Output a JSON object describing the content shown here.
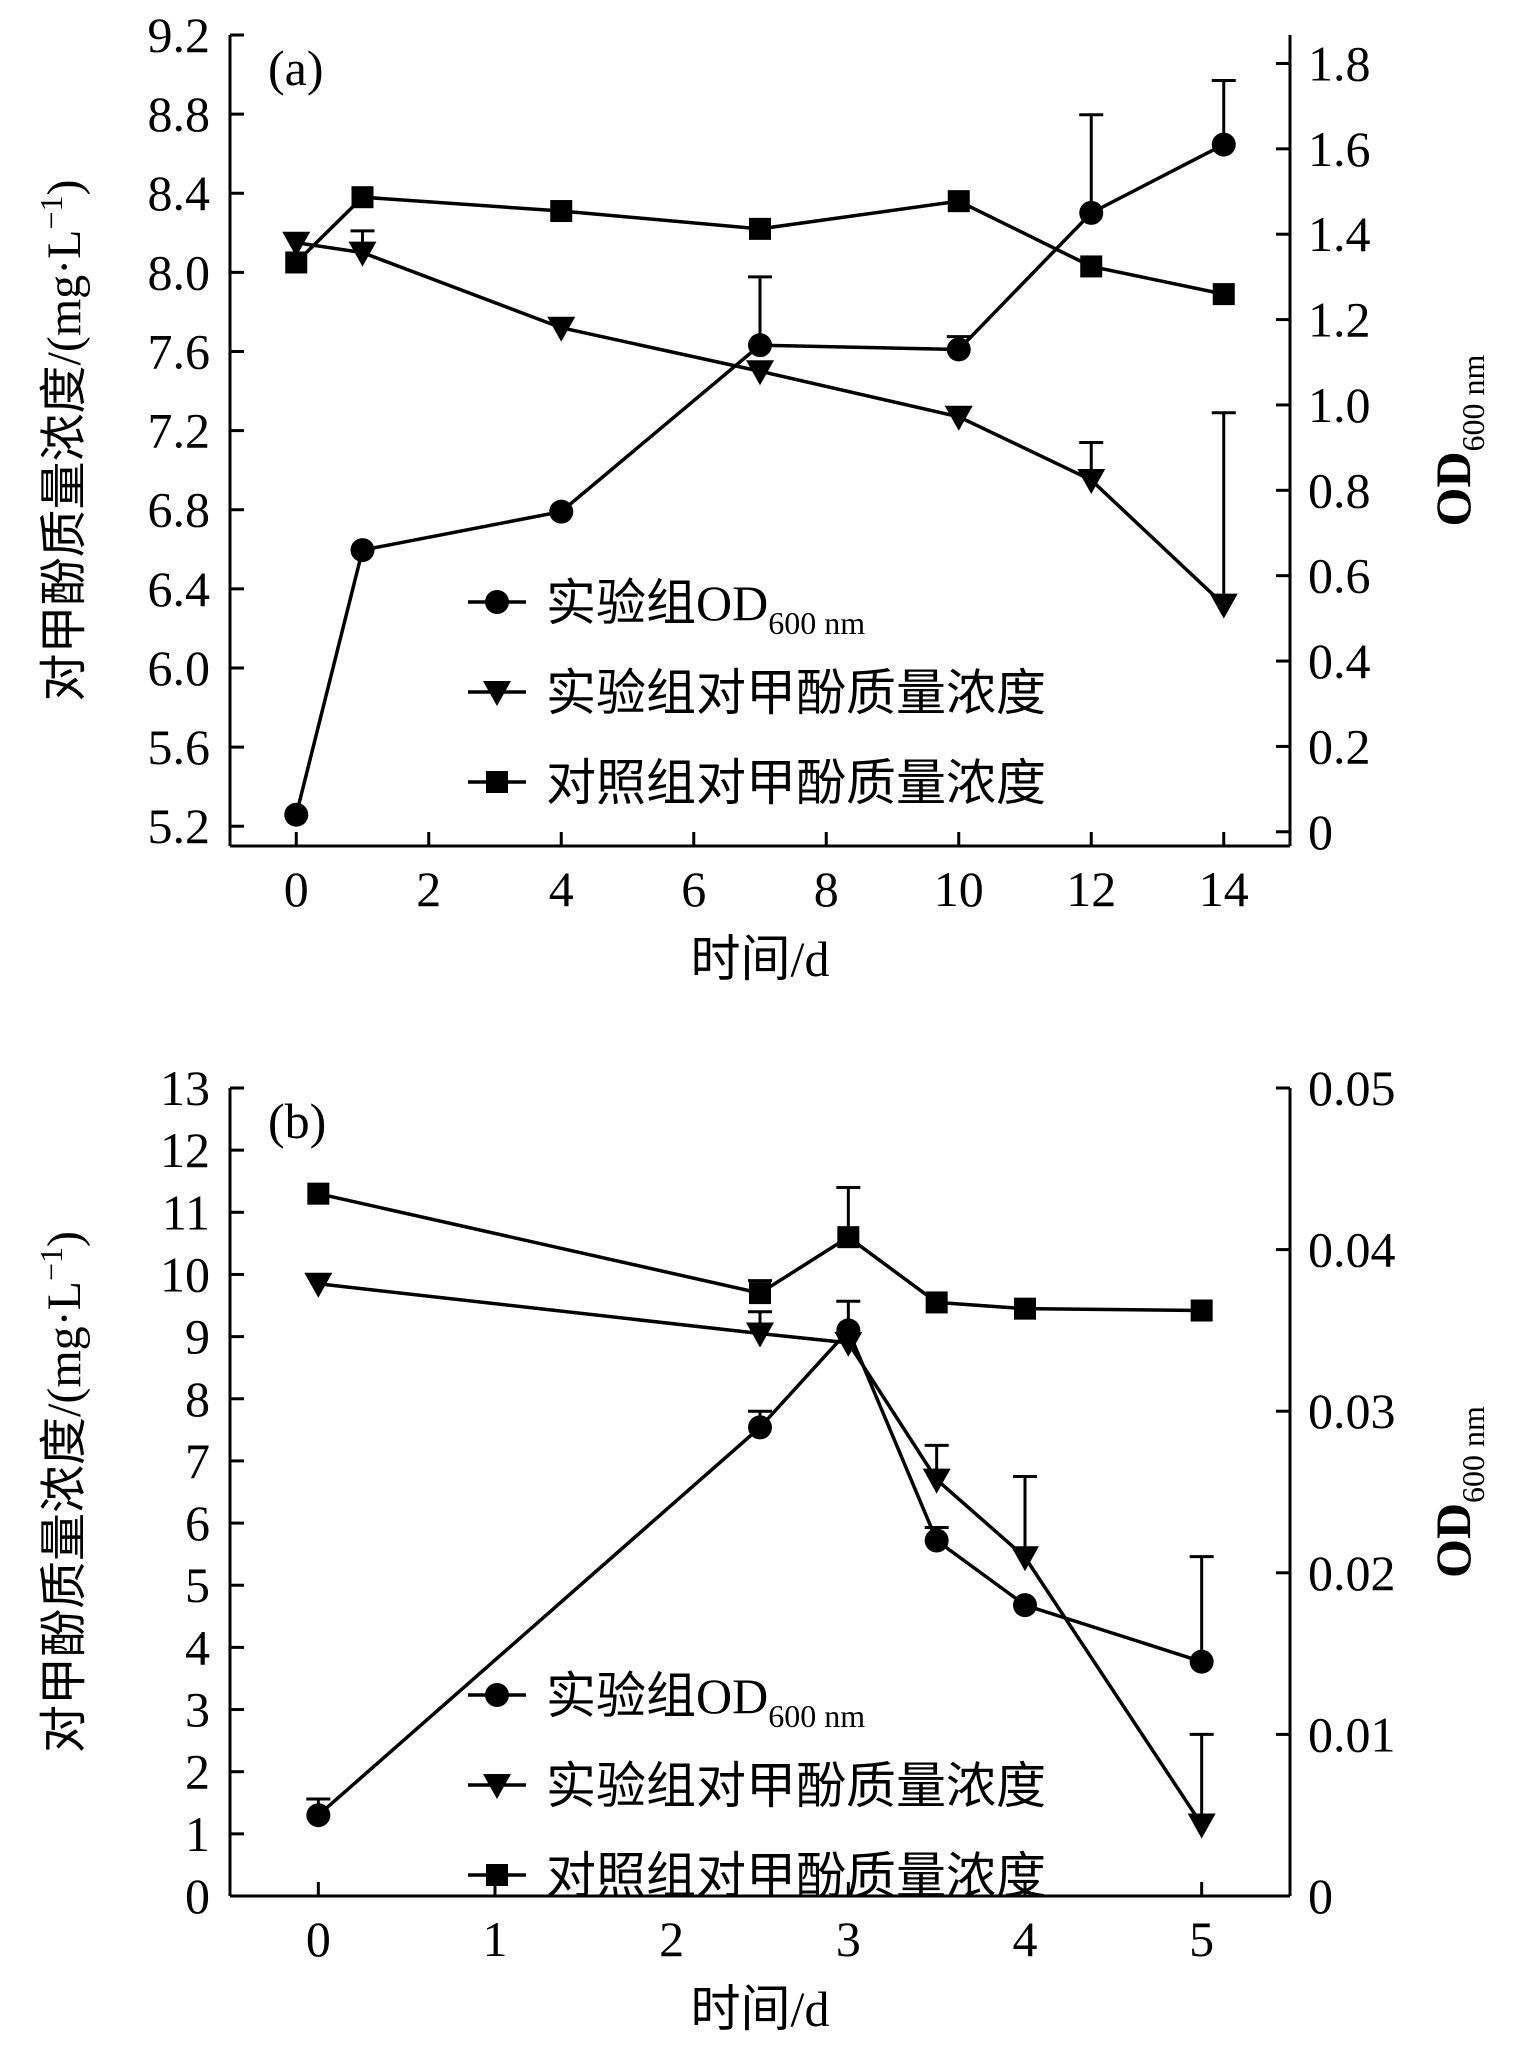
{
  "chart_data": [
    {
      "type": "line",
      "panel_label": "(a)",
      "xlabel": "时间/d",
      "ylabel_left": "对甲酚质量浓度/(mg·L",
      "ylabel_left_sup": "−1",
      "ylabel_left_close": ")",
      "ylabel_right": "OD",
      "ylabel_right_sub": "600 nm",
      "xlim": [
        -1,
        15
      ],
      "x_ticks": [
        "0",
        "2",
        "4",
        "6",
        "8",
        "10",
        "12",
        "14"
      ],
      "y_left_lim": [
        5.1,
        9.2
      ],
      "y_left_ticks": [
        "5.2",
        "5.6",
        "6.0",
        "6.4",
        "6.8",
        "7.2",
        "7.6",
        "8.0",
        "8.4",
        "8.8",
        "9.2"
      ],
      "y_right_lim": [
        -0.0333,
        1.8667
      ],
      "y_right_ticks": [
        "0",
        "0.2",
        "0.4",
        "0.6",
        "0.8",
        "1.0",
        "1.2",
        "1.4",
        "1.6",
        "1.8"
      ],
      "legend": [
        "实验组OD",
        "实验组对甲酚质量浓度",
        "对照组对甲酚质量浓度"
      ],
      "legend_sub": "600 nm",
      "series": [
        {
          "name": "实验组OD600 nm",
          "axis": "right",
          "marker": "circle",
          "x": [
            0,
            1,
            4,
            7,
            10,
            12,
            14
          ],
          "y": [
            0.04,
            0.66,
            0.75,
            1.14,
            1.13,
            1.45,
            1.61
          ],
          "err": [
            0,
            0,
            0,
            0.16,
            0.03,
            0.23,
            0.15
          ]
        },
        {
          "name": "实验组对甲酚质量浓度",
          "axis": "left",
          "marker": "triangle",
          "x": [
            0,
            1,
            4,
            7,
            10,
            12,
            14
          ],
          "y": [
            8.15,
            8.1,
            7.72,
            7.5,
            7.27,
            6.95,
            6.32
          ],
          "err": [
            0,
            0.11,
            0,
            0,
            0,
            0.19,
            0.97
          ]
        },
        {
          "name": "对照组对甲酚质量浓度",
          "axis": "left",
          "marker": "square",
          "x": [
            0,
            1,
            4,
            7,
            10,
            12,
            14
          ],
          "y": [
            8.05,
            8.38,
            8.31,
            8.22,
            8.36,
            8.03,
            7.89
          ],
          "err": [
            0,
            0,
            0,
            0,
            0,
            0,
            0
          ]
        }
      ]
    },
    {
      "type": "line",
      "panel_label": "(b)",
      "xlabel": "时间/d",
      "ylabel_left": "对甲酚质量浓度/(mg·L",
      "ylabel_left_sup": "−1",
      "ylabel_left_close": ")",
      "ylabel_right": "OD",
      "ylabel_right_sub": "600 nm",
      "xlim": [
        -0.5,
        5.5
      ],
      "x_ticks": [
        "0",
        "1",
        "2",
        "3",
        "4",
        "5"
      ],
      "y_left_lim": [
        0,
        13
      ],
      "y_left_ticks": [
        "0",
        "1",
        "2",
        "3",
        "4",
        "5",
        "6",
        "7",
        "8",
        "9",
        "10",
        "11",
        "12",
        "13"
      ],
      "y_right_lim": [
        0,
        0.05
      ],
      "y_right_ticks": [
        "0",
        "0.01",
        "0.02",
        "0.03",
        "0.04",
        "0.05"
      ],
      "legend": [
        "实验组OD",
        "实验组对甲酚质量浓度",
        "对照组对甲酚质量浓度"
      ],
      "legend_sub": "600 nm",
      "series": [
        {
          "name": "实验组OD600 nm",
          "axis": "right",
          "marker": "circle",
          "x": [
            0,
            2.5,
            3,
            3.5,
            4,
            5
          ],
          "y": [
            0.005,
            0.029,
            0.035,
            0.022,
            0.018,
            0.0145
          ],
          "err": [
            0.001,
            0.001,
            0.0018,
            0.0008,
            0,
            0.0065
          ]
        },
        {
          "name": "实验组对甲酚质量浓度",
          "axis": "left",
          "marker": "triangle",
          "x": [
            0,
            2.5,
            3,
            3.5,
            4,
            5
          ],
          "y": [
            9.85,
            9.05,
            8.9,
            6.7,
            5.45,
            1.15
          ],
          "err": [
            0,
            0.35,
            0,
            0.55,
            1.3,
            1.45
          ]
        },
        {
          "name": "对照组对甲酚质量浓度",
          "axis": "left",
          "marker": "square",
          "x": [
            0,
            2.5,
            3,
            3.5,
            4,
            5
          ],
          "y": [
            11.3,
            9.7,
            10.6,
            9.55,
            9.45,
            9.42
          ],
          "err": [
            0,
            0.2,
            0.8,
            0,
            0,
            0
          ]
        }
      ]
    }
  ]
}
